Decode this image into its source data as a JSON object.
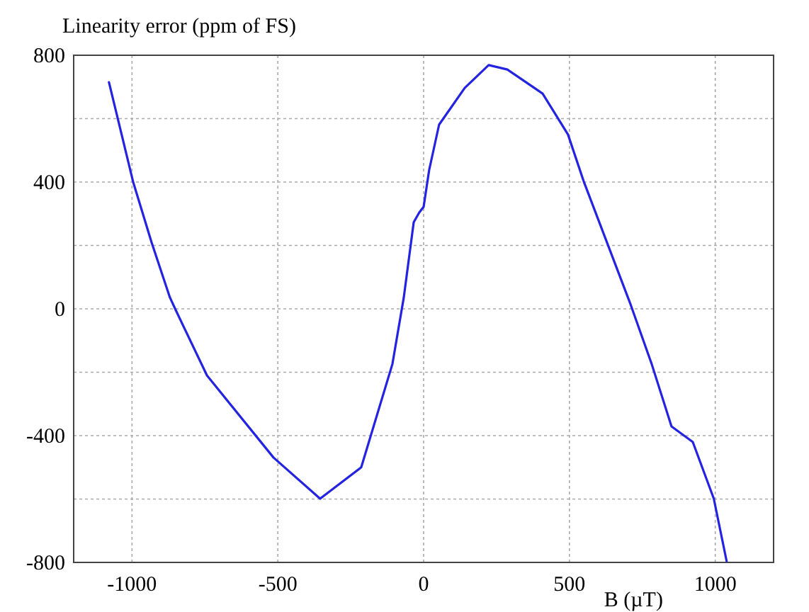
{
  "chart_data": {
    "type": "line",
    "xlabel": "B (µT)",
    "ylabel": "Linearity error (ppm of FS)",
    "xlim": [
      -1200,
      1200
    ],
    "xticks": [
      -1000,
      -500,
      0,
      500,
      1000
    ],
    "ylim": [
      -800,
      800
    ],
    "yticks": [
      -800,
      {
        "value": -600,
        "label": null
      },
      -400,
      {
        "value": -200,
        "label": null
      },
      0,
      {
        "value": 200,
        "label": null
      },
      400,
      {
        "value": 600,
        "label": null
      },
      800
    ],
    "grid": true,
    "marker": "none",
    "line_style": "solid",
    "series": [
      {
        "color": "#2323e0",
        "x": [
          -1079,
          -996,
          -933,
          -870,
          -850,
          -743,
          -515,
          -355,
          -214,
          -107,
          -68,
          -34,
          -15,
          0,
          19,
          53,
          141,
          223,
          287,
          408,
          495,
          549,
          710,
          782,
          850,
          923,
          995,
          1039
        ],
        "values": [
          715,
          400,
          210,
          36,
          -4,
          -210,
          -469,
          -599,
          -500,
          -174,
          36,
          273,
          304,
          322,
          438,
          581,
          697,
          769,
          755,
          679,
          550,
          402,
          13,
          -174,
          -371,
          -420,
          -599,
          -796
        ]
      }
    ]
  }
}
